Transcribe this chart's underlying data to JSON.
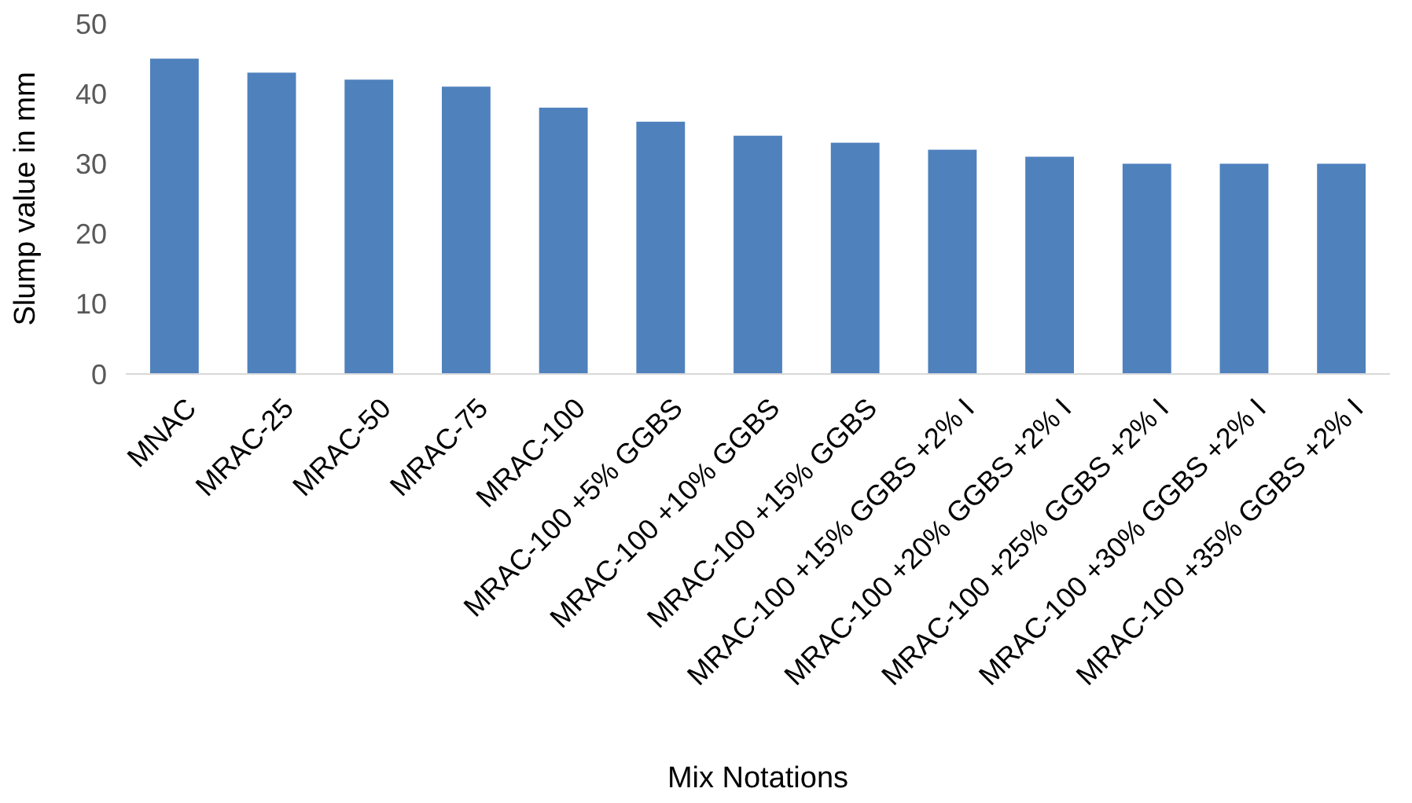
{
  "chart_data": {
    "type": "bar",
    "xlabel": "Mix Notations",
    "ylabel": "Slump value in mm",
    "categories": [
      "MNAC",
      "MRAC-25",
      "MRAC-50",
      "MRAC-75",
      "MRAC-100",
      "MRAC-100 +5% GGBS",
      "MRAC-100 +10% GGBS",
      "MRAC-100 +15% GGBS",
      "MRAC-100 +15% GGBS +2% I",
      "MRAC-100 +20% GGBS +2% I",
      "MRAC-100 +25% GGBS +2% I",
      "MRAC-100 +30% GGBS +2% I",
      "MRAC-100 +35% GGBS +2% I"
    ],
    "values": [
      45,
      43,
      42,
      41,
      38,
      36,
      34,
      33,
      32,
      31,
      30,
      30,
      30
    ],
    "color": "#4f81bd",
    "ylim": [
      0,
      50
    ],
    "yticks": [
      0,
      10,
      20,
      30,
      40,
      50
    ],
    "grid": false
  }
}
